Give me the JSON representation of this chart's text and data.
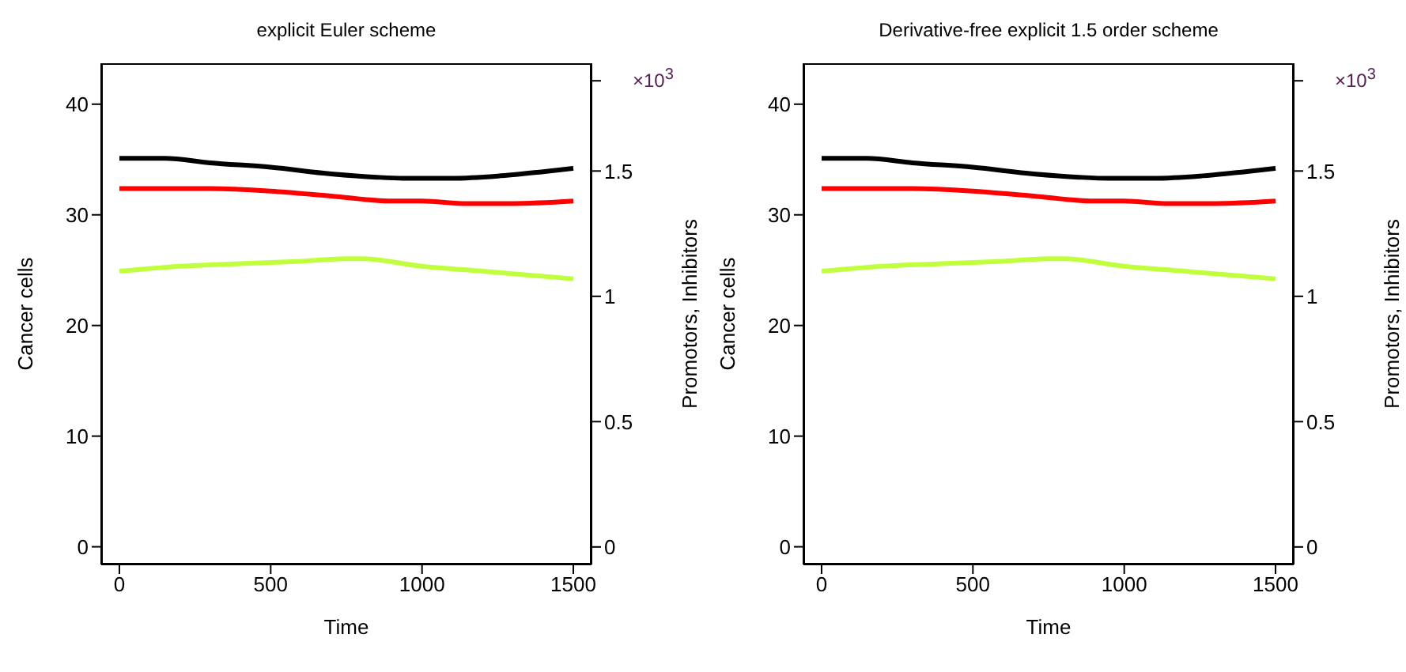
{
  "chart_data": [
    {
      "type": "line",
      "title": "explicit Euler scheme",
      "xlabel": "Time",
      "ylabel": "Cancer cells",
      "y2label": "Promotors, Inhibitors",
      "annotations": [
        "×10$^{3}$"
      ],
      "xlim": [
        -60,
        1560
      ],
      "xticks": [
        0,
        500,
        1000,
        1500
      ],
      "ylim": [
        -1.6,
        43.7
      ],
      "yticks": [
        0,
        10,
        20,
        30,
        40
      ],
      "y2lim": [
        -0.07,
        1.93
      ],
      "y2ticks": [
        0,
        0.5,
        1,
        1.5,
        {
          "value": 1.86,
          "label": null
        }
      ],
      "grid": false,
      "marker": "none",
      "line_style": "solid",
      "series": [
        {
          "color": "#000000",
          "axis": "y",
          "x": [
            0,
            150,
            300,
            500,
            700,
            850,
            950,
            1100,
            1250,
            1400,
            1500
          ],
          "values": [
            35.1,
            35.1,
            34.7,
            34.3,
            33.7,
            33.4,
            33.3,
            33.3,
            33.5,
            33.9,
            34.2
          ]
        },
        {
          "color": "#ff0000",
          "axis": "y2",
          "x": [
            0,
            300,
            500,
            700,
            900,
            1000,
            1150,
            1300,
            1500
          ],
          "values": [
            1.43,
            1.43,
            1.42,
            1.4,
            1.38,
            1.38,
            1.37,
            1.37,
            1.38
          ]
        },
        {
          "color": "#c0ff3e",
          "axis": "y2",
          "x": [
            0,
            200,
            400,
            600,
            750,
            800,
            1000,
            1200,
            1500
          ],
          "values": [
            1.1,
            1.12,
            1.13,
            1.14,
            1.15,
            1.15,
            1.12,
            1.1,
            1.07
          ]
        }
      ]
    },
    {
      "type": "line",
      "title": "Derivative-free explicit 1.5 order scheme",
      "xlabel": "Time",
      "ylabel": "Cancer cells",
      "y2label": "Promotors, Inhibitors",
      "annotations": [
        "×10$^{3}$"
      ],
      "xlim": [
        -60,
        1560
      ],
      "xticks": [
        0,
        500,
        1000,
        1500
      ],
      "ylim": [
        -1.6,
        43.7
      ],
      "yticks": [
        0,
        10,
        20,
        30,
        40
      ],
      "y2lim": [
        -0.07,
        1.93
      ],
      "y2ticks": [
        0,
        0.5,
        1,
        1.5,
        {
          "value": 1.86,
          "label": null
        }
      ],
      "grid": false,
      "marker": "none",
      "line_style": "solid",
      "series": [
        {
          "color": "#000000",
          "axis": "y",
          "x": [
            0,
            150,
            300,
            500,
            700,
            850,
            950,
            1100,
            1250,
            1400,
            1500
          ],
          "values": [
            35.1,
            35.1,
            34.7,
            34.3,
            33.7,
            33.4,
            33.3,
            33.3,
            33.5,
            33.9,
            34.2
          ]
        },
        {
          "color": "#ff0000",
          "axis": "y2",
          "x": [
            0,
            300,
            500,
            700,
            900,
            1000,
            1150,
            1300,
            1500
          ],
          "values": [
            1.43,
            1.43,
            1.42,
            1.4,
            1.38,
            1.38,
            1.37,
            1.37,
            1.38
          ]
        },
        {
          "color": "#c0ff3e",
          "axis": "y2",
          "x": [
            0,
            200,
            400,
            600,
            750,
            800,
            1000,
            1200,
            1500
          ],
          "values": [
            1.1,
            1.12,
            1.13,
            1.14,
            1.15,
            1.15,
            1.12,
            1.1,
            1.07
          ]
        }
      ]
    }
  ]
}
